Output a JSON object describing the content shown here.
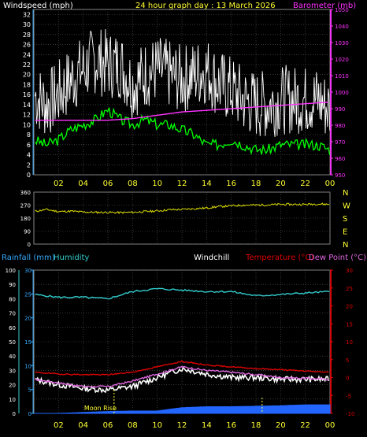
{
  "header": {
    "left": "Windspeed (mph)",
    "center": "24 hour graph day : 13 March 2026",
    "right": "Barometer (mb)"
  },
  "colors": {
    "background": "#000000",
    "plot": "#000000",
    "grid": "#5a5a5a",
    "axis_text": "#ffffff",
    "time_axis": "#ffff33",
    "baro_axis": "#ff33ff",
    "wind_gust": "#ffffff",
    "wind_avg": "#00ff00",
    "barometer": "#ff33ff",
    "direction": "#dddd00",
    "rain_axis": "#33aaff",
    "humidity": "#33cccc",
    "windchill": "#ffffff",
    "temperature": "#dd0000",
    "dewpoint": "#dd66dd",
    "rain": "#2266ff",
    "moon": "#ffff33"
  },
  "chart_data": [
    {
      "type": "line",
      "title": "24 hour graph day : 13 March 2026",
      "ylabel": "Windspeed (mph)",
      "y2label": "Barometer (mb)",
      "x_ticks": [
        "02",
        "04",
        "06",
        "08",
        "10",
        "12",
        "14",
        "16",
        "18",
        "20",
        "22",
        "00"
      ],
      "y_ticks": [
        "0",
        "2",
        "4",
        "6",
        "8",
        "10",
        "12",
        "14",
        "16",
        "18",
        "20",
        "22",
        "24",
        "26",
        "28",
        "30",
        "32"
      ],
      "y2_ticks": [
        "950",
        "960",
        "970",
        "980",
        "990",
        "1000",
        "1010",
        "1020",
        "1030",
        "1040",
        "1050"
      ],
      "ylim": [
        0,
        33
      ],
      "y2lim": [
        950,
        1050
      ],
      "grid": true,
      "series": [
        {
          "name": "gust",
          "color": "#ffffff",
          "x": [
            0,
            1,
            2,
            3,
            4,
            5,
            6,
            7,
            8,
            9,
            10,
            11,
            12,
            13,
            14,
            15,
            16,
            17,
            18,
            19,
            20,
            21,
            22,
            23,
            24
          ],
          "values": [
            16,
            14,
            16,
            19,
            21,
            23,
            22,
            22,
            18,
            20,
            21,
            20,
            19,
            20,
            21,
            18,
            17,
            15,
            14,
            14,
            15,
            15,
            15,
            15,
            13
          ]
        },
        {
          "name": "average",
          "color": "#00ff00",
          "x": [
            0,
            1,
            2,
            3,
            4,
            5,
            6,
            7,
            8,
            9,
            10,
            11,
            12,
            13,
            14,
            15,
            16,
            17,
            18,
            19,
            20,
            21,
            22,
            23,
            24
          ],
          "values": [
            7,
            6,
            7,
            9,
            10,
            11,
            13,
            11,
            10,
            11,
            10,
            10,
            9,
            8,
            6,
            6,
            7,
            6,
            5,
            5,
            6,
            6,
            6,
            6,
            5
          ]
        },
        {
          "name": "barometer",
          "color": "#ff33ff",
          "axis": "right",
          "x": [
            0,
            2,
            4,
            6,
            8,
            10,
            12,
            14,
            16,
            18,
            20,
            22,
            24
          ],
          "values": [
            983,
            983,
            983,
            983,
            984,
            986,
            988,
            989,
            990,
            991,
            992,
            993,
            994
          ]
        }
      ]
    },
    {
      "type": "line",
      "title": "",
      "y_ticks": [
        "0",
        "90",
        "180",
        "270",
        "360"
      ],
      "ylim": [
        0,
        360
      ],
      "right_labels": [
        "N",
        "W",
        "S",
        "E",
        "N"
      ],
      "grid": true,
      "series": [
        {
          "name": "direction",
          "color": "#dddd00",
          "x": [
            0,
            1,
            2,
            3,
            4,
            5,
            6,
            7,
            8,
            9,
            10,
            11,
            12,
            13,
            14,
            15,
            16,
            17,
            18,
            19,
            20,
            21,
            22,
            23,
            24
          ],
          "values": [
            225,
            240,
            225,
            228,
            222,
            220,
            220,
            218,
            220,
            225,
            230,
            238,
            240,
            245,
            250,
            260,
            265,
            270,
            270,
            272,
            275,
            275,
            275,
            278,
            275
          ]
        }
      ]
    },
    {
      "type": "line",
      "legend": [
        "Rainfall (mm)",
        "Humidity",
        "Windchill",
        "Temperature (°C)",
        "Dew Point (°C)"
      ],
      "y_ticks_humidity": [
        "0",
        "10",
        "20",
        "30",
        "40",
        "50",
        "60",
        "70",
        "80",
        "90",
        "100"
      ],
      "y_ticks_rain": [
        "0",
        "5",
        "10",
        "15",
        "20",
        "25",
        "30"
      ],
      "y_ticks_temp": [
        "-10",
        "-5",
        "0",
        "5",
        "10",
        "15",
        "20",
        "25",
        "30"
      ],
      "ylim_humidity": [
        0,
        100
      ],
      "ylim_temp": [
        -10,
        30
      ],
      "annotation": "Moon Rise",
      "grid": true,
      "series": [
        {
          "name": "Humidity",
          "color": "#33cccc",
          "axis": "humidity",
          "x": [
            0,
            2,
            4,
            6,
            8,
            10,
            12,
            14,
            16,
            18,
            20,
            22,
            24
          ],
          "values": [
            83,
            81,
            81,
            80,
            85,
            87,
            86,
            85,
            85,
            82,
            83,
            84,
            85
          ]
        },
        {
          "name": "Temperature",
          "color": "#dd0000",
          "axis": "temp",
          "x": [
            0,
            2,
            4,
            6,
            8,
            10,
            12,
            14,
            16,
            18,
            20,
            22,
            24
          ],
          "values": [
            1.5,
            1,
            0.8,
            0.8,
            1.5,
            3,
            4.5,
            3.5,
            3,
            2.5,
            2.2,
            1.8,
            1.5
          ]
        },
        {
          "name": "Dew Point",
          "color": "#dd66dd",
          "axis": "temp",
          "x": [
            0,
            2,
            4,
            6,
            8,
            10,
            12,
            14,
            16,
            18,
            20,
            22,
            24
          ],
          "values": [
            -0.5,
            -1.5,
            -2.5,
            -2.5,
            -1,
            1,
            3,
            2,
            1.5,
            0.8,
            0,
            -0.2,
            -0.5
          ]
        },
        {
          "name": "Windchill",
          "color": "#ffffff",
          "axis": "temp",
          "x": [
            0,
            2,
            4,
            6,
            8,
            10,
            12,
            14,
            16,
            18,
            20,
            22,
            24
          ],
          "values": [
            -0.5,
            -2,
            -3,
            -3.5,
            -2.5,
            0,
            2.5,
            1,
            0,
            0,
            -0.5,
            -0.5,
            -0.5
          ]
        },
        {
          "name": "Rainfall",
          "color": "#2266ff",
          "axis": "rain",
          "x": [
            0,
            2,
            4,
            6,
            8,
            10,
            12,
            14,
            16,
            18,
            20,
            22,
            24
          ],
          "values": [
            0,
            0,
            0.2,
            0.4,
            0.5,
            0.5,
            1.2,
            1.4,
            1.4,
            1.5,
            1.6,
            1.8,
            1.8
          ]
        }
      ],
      "moon_rise_hour": 6.5,
      "second_marker_hour": 18.5,
      "x_ticks": [
        "02",
        "04",
        "06",
        "08",
        "10",
        "12",
        "14",
        "16",
        "18",
        "20",
        "22",
        "00"
      ]
    }
  ]
}
